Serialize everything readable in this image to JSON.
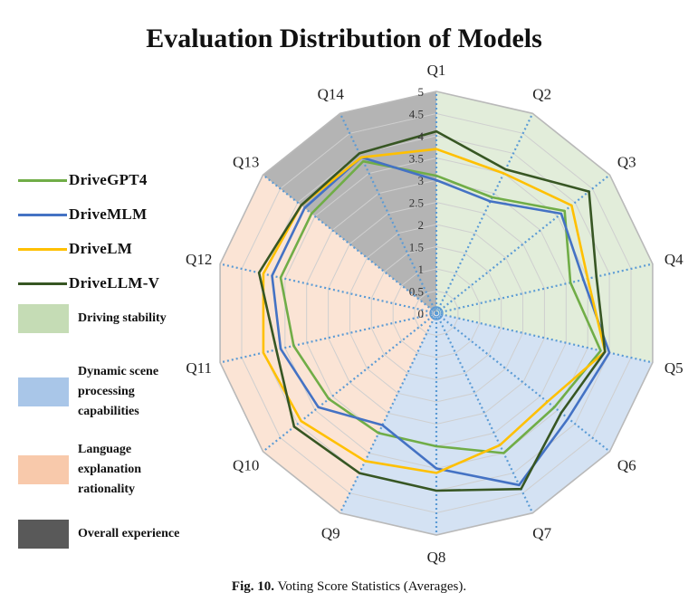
{
  "chart_data": {
    "type": "radar",
    "title": "Evaluation Distribution of Models",
    "axes": [
      "Q1",
      "Q2",
      "Q3",
      "Q4",
      "Q5",
      "Q6",
      "Q7",
      "Q8",
      "Q9",
      "Q10",
      "Q11",
      "Q12",
      "Q13",
      "Q14"
    ],
    "r_ticks": [
      "0",
      "0.5",
      "1",
      "1.5",
      "2",
      "2.5",
      "3",
      "3.5",
      "4",
      "4.5",
      "5"
    ],
    "r_range": [
      0,
      5
    ],
    "series": [
      {
        "name": "DriveGPT4",
        "color": "#70ad47",
        "values": [
          3.1,
          2.9,
          3.7,
          3.1,
          3.8,
          3.4,
          3.5,
          3.0,
          3.0,
          3.1,
          3.3,
          3.6,
          3.6,
          3.8
        ]
      },
      {
        "name": "DriveMLM",
        "color": "#4472c4",
        "values": [
          3.0,
          2.8,
          3.6,
          3.4,
          4.0,
          3.8,
          4.3,
          3.5,
          2.8,
          3.4,
          3.6,
          3.8,
          3.8,
          3.9
        ]
      },
      {
        "name": "DriveLM",
        "color": "#ffc000",
        "values": [
          3.7,
          3.5,
          3.9,
          3.5,
          3.9,
          3.2,
          3.3,
          3.6,
          3.7,
          3.9,
          4.0,
          4.0,
          3.9,
          3.9
        ]
      },
      {
        "name": "DriveLLM-V",
        "color": "#375623",
        "values": [
          4.1,
          3.6,
          4.4,
          3.7,
          3.9,
          3.6,
          4.4,
          4.0,
          4.0,
          4.1,
          3.7,
          4.1,
          3.9,
          4.0
        ]
      }
    ],
    "regions": [
      {
        "name": "Driving stability",
        "color": "#c5dcb5",
        "axes": [
          "Q1",
          "Q2",
          "Q3",
          "Q4"
        ]
      },
      {
        "name": "Dynamic scene processing capabilities",
        "color": "#a9c6e8",
        "axes": [
          "Q5",
          "Q6",
          "Q7",
          "Q8"
        ]
      },
      {
        "name": "Language explanation rationality",
        "color": "#f8c9ab",
        "axes": [
          "Q9",
          "Q10",
          "Q11",
          "Q12"
        ]
      },
      {
        "name": "Overall experience",
        "color": "#595959",
        "axes": [
          "Q13",
          "Q14"
        ]
      }
    ]
  },
  "legend": {
    "series_labels": [
      "DriveGPT4",
      "DriveMLM",
      "DriveLM",
      "DriveLLM-V"
    ],
    "region_labels": [
      [
        "Driving stability"
      ],
      [
        "Dynamic scene",
        "processing",
        "capabilities"
      ],
      [
        "Language",
        "explanation",
        "rationality"
      ],
      [
        "Overall experience"
      ]
    ]
  },
  "caption": {
    "label": "Fig. 10.",
    "text": "Voting Score Statistics (Averages)."
  }
}
